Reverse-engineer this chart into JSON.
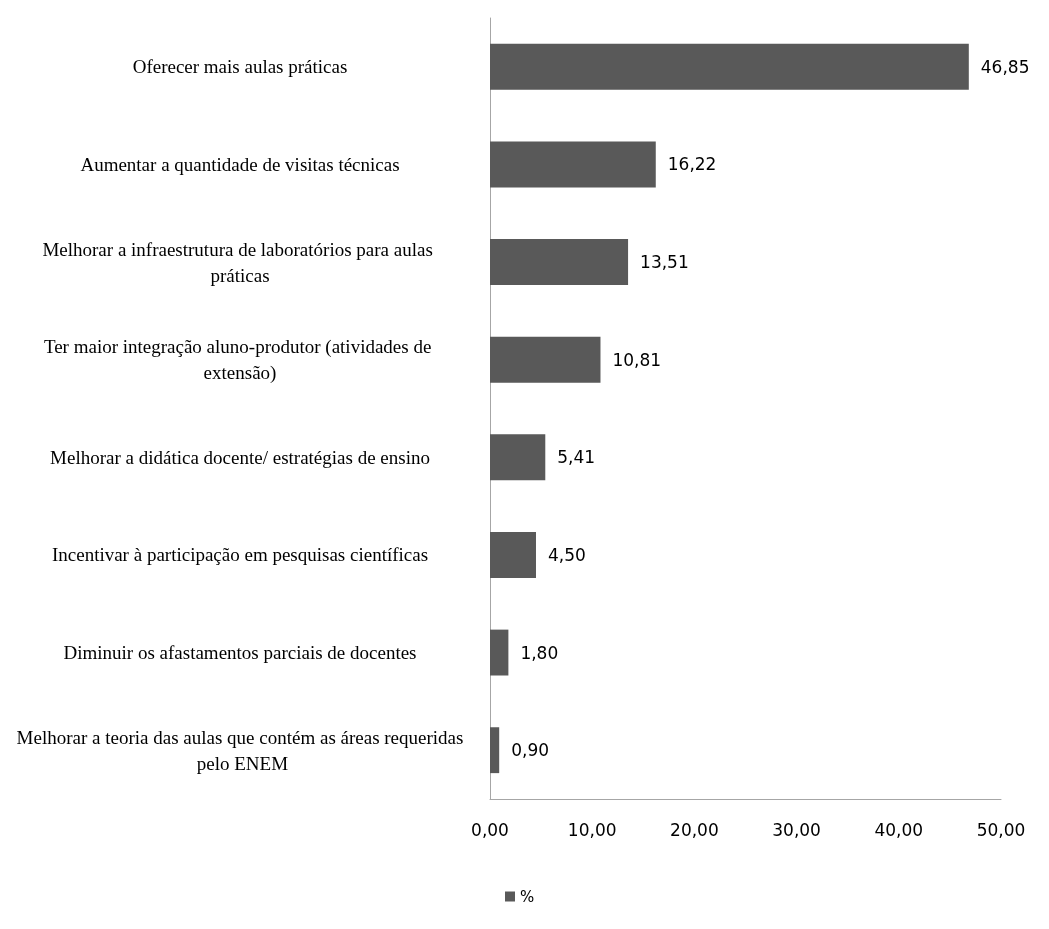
{
  "chart_data": {
    "type": "bar",
    "orientation": "horizontal",
    "categories": [
      "Oferecer mais aulas práticas",
      "Aumentar a quantidade de visitas técnicas",
      "Melhorar a infraestrutura de laboratórios para aulas práticas",
      "Ter maior integração aluno-produtor (atividades de extensão)",
      "Melhorar a didática docente/ estratégias de ensino",
      "Incentivar à participação em pesquisas científicas",
      "Diminuir os afastamentos parciais de docentes",
      "Melhorar a teoria das aulas que contém as áreas requeridas pelo ENEM"
    ],
    "series": [
      {
        "name": "%",
        "color": "#595959",
        "values": [
          46.85,
          16.22,
          13.51,
          10.81,
          5.41,
          4.5,
          1.8,
          0.9
        ],
        "value_labels": [
          "46,85",
          "16,22",
          "13,51",
          "10,81",
          "5,41",
          "4,50",
          "1,80",
          "0,90"
        ]
      }
    ],
    "xlim": [
      0,
      50
    ],
    "xticks": [
      {
        "value": 0,
        "label": "0,00"
      },
      {
        "value": 10,
        "label": "10,00"
      },
      {
        "value": 20,
        "label": "20,00"
      },
      {
        "value": 30,
        "label": "30,00"
      },
      {
        "value": 40,
        "label": "40,00"
      },
      {
        "value": 50,
        "label": "50,00"
      }
    ],
    "legend": "bottom",
    "grid": false
  }
}
